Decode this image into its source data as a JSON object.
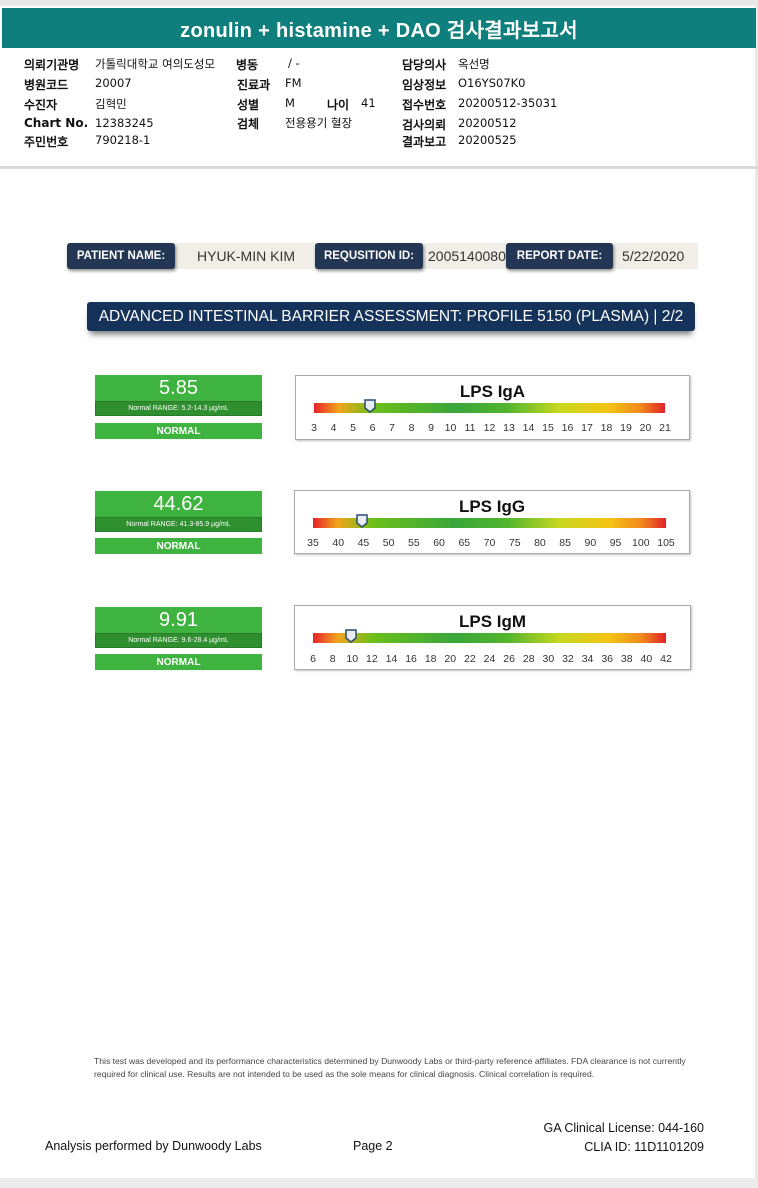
{
  "report_title": "zonulin + histamine + DAO 검사결과보고서",
  "header": {
    "hospital_label": "의뢰기관명",
    "hospital_value": "가톨릭대학교 여의도성모",
    "ward_label": "병동",
    "ward_value": "/ -",
    "doctor_label": "담당의사",
    "doctor_value": "옥선명",
    "code_label": "병원코드",
    "code_value": "20007",
    "dept_label": "진료과",
    "dept_value": "FM",
    "clinical_label": "임상정보",
    "clinical_value": "O16YS07K0",
    "examinee_label": "수진자",
    "examinee_value": "김혁민",
    "sex_label": "성별",
    "sex_value": "M",
    "age_label": "나이",
    "age_value": "41",
    "receipt_label": "접수번호",
    "receipt_value": "20200512-35031",
    "chart_label": "Chart No.",
    "chart_value": "12383245",
    "specimen_label": "검체",
    "specimen_value": "전용용기 혈장",
    "request_label": "검사의뢰",
    "request_value": "20200512",
    "id_label": "주민번호",
    "id_value": "790218-1",
    "result_label": "결과보고",
    "result_value": "20200525"
  },
  "patient_info": {
    "name_label": "PATIENT NAME:",
    "name_value": "HYUK-MIN KIM",
    "req_label": "REQUSITION ID:",
    "req_value": "2005140080",
    "date_label": "REPORT DATE:",
    "date_value": "5/22/2020"
  },
  "banner": "ADVANCED INTESTINAL BARRIER ASSESSMENT: PROFILE 5150 (PLASMA) | 2/2",
  "colors": {
    "teal": "#0e7f7c",
    "navy": "#233654",
    "green": "#3fb33f"
  },
  "tests": [
    {
      "name": "LPS IgA",
      "value": "5.85",
      "range": "Normal RANGE: 5.2-14.3 μg/mL",
      "status": "NORMAL",
      "marker_value": 5.85,
      "ticks": [
        "3",
        "4",
        "5",
        "6",
        "7",
        "8",
        "9",
        "10",
        "11",
        "12",
        "13",
        "14",
        "15",
        "16",
        "17",
        "18",
        "19",
        "20",
        "21"
      ]
    },
    {
      "name": "LPS IgG",
      "value": "44.62",
      "range": "Normal RANGE: 41.3-85.9 μg/mL",
      "status": "NORMAL",
      "marker_value": 44.62,
      "ticks": [
        "35",
        "40",
        "45",
        "50",
        "55",
        "60",
        "65",
        "70",
        "75",
        "80",
        "85",
        "90",
        "95",
        "100",
        "105"
      ]
    },
    {
      "name": "LPS IgM",
      "value": "9.91",
      "range": "Normal RANGE: 9.6-28.4 μg/mL",
      "status": "NORMAL",
      "marker_value": 9.91,
      "ticks": [
        "6",
        "8",
        "10",
        "12",
        "14",
        "16",
        "18",
        "20",
        "22",
        "24",
        "26",
        "28",
        "30",
        "32",
        "34",
        "36",
        "38",
        "40",
        "42"
      ]
    }
  ],
  "disclaimer": "This test was developed and its performance characteristics determined by Dunwoody Labs or third-party reference affiliates. FDA clearance is not currently required for clinical use. Results are not intended to be used as the sole means for clinical diagnosis. Clinical correlation is required.",
  "footer": {
    "analysis": "Analysis performed by Dunwoody Labs",
    "page": "Page 2",
    "license": "GA Clinical License: 044-160",
    "clia": "CLIA ID: 11D1101209"
  }
}
